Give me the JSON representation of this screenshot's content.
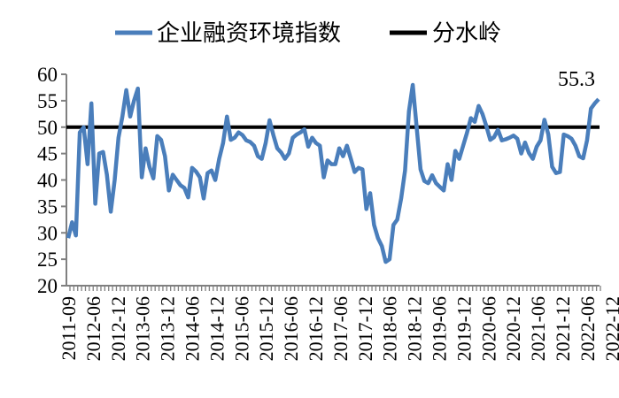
{
  "chart_data": {
    "type": "line",
    "title": "",
    "xlabel": "",
    "ylabel": "",
    "ylim": [
      20,
      60
    ],
    "y_ticks": [
      20,
      25,
      30,
      35,
      40,
      45,
      50,
      55,
      60
    ],
    "x_tick_labels": [
      "2011-09",
      "2012-06",
      "2012-12",
      "2013-06",
      "2013-12",
      "2014-06",
      "2014-12",
      "2015-06",
      "2015-12",
      "2016-06",
      "2016-12",
      "2017-06",
      "2017-12",
      "2018-06",
      "2018-12",
      "2019-06",
      "2019-12",
      "2020-06",
      "2020-12",
      "2021-06",
      "2021-12",
      "2022-06",
      "2022-12"
    ],
    "legend_position": "top",
    "grid": false,
    "series": [
      {
        "name": "企业融资环境指数",
        "color": "#4a7ebb",
        "values": [
          29,
          32,
          29.5,
          49,
          50,
          43,
          54.5,
          35.5,
          45,
          45.3,
          41,
          34,
          40,
          48,
          52,
          57,
          52,
          55,
          57.3,
          40.5,
          46,
          42.5,
          40.3,
          48.3,
          47.6,
          44.5,
          38,
          41,
          40,
          39,
          38.5,
          36.7,
          42.3,
          41.6,
          40.5,
          36.5,
          41.3,
          41.8,
          40,
          44,
          47,
          52,
          47.6,
          48,
          49,
          48.5,
          47.5,
          47.2,
          46.5,
          44.5,
          44,
          47,
          51.3,
          48.5,
          46,
          45.2,
          44,
          45,
          48,
          48.6,
          49,
          49.6,
          46.3,
          48,
          47,
          46.5,
          40.5,
          43.7,
          43,
          43,
          46,
          44.5,
          46.5,
          44,
          41.5,
          42.3,
          42,
          34.5,
          37.5,
          31.5,
          29,
          27.5,
          24.5,
          25,
          31.5,
          32.5,
          36.5,
          41.8,
          53,
          58,
          50,
          42,
          39.8,
          39.4,
          40.9,
          39.4,
          38.7,
          38,
          43,
          40,
          45.5,
          44,
          46.5,
          48.9,
          51.7,
          51,
          54,
          52.5,
          50.2,
          47.6,
          48.1,
          49.5,
          47.5,
          47.7,
          48,
          48.4,
          47.8,
          45,
          47.1,
          45.1,
          44,
          46.3,
          47.5,
          51.4,
          48.6,
          42.5,
          41.3,
          41.5,
          48.6,
          48.3,
          47.8,
          46.5,
          44.5,
          44.1,
          47.5,
          53.5,
          54.5,
          55.3
        ]
      },
      {
        "name": "分水岭",
        "color": "#000000",
        "constant": 50
      }
    ],
    "annotations": [
      {
        "text": "55.3",
        "target": "last-point"
      }
    ]
  }
}
